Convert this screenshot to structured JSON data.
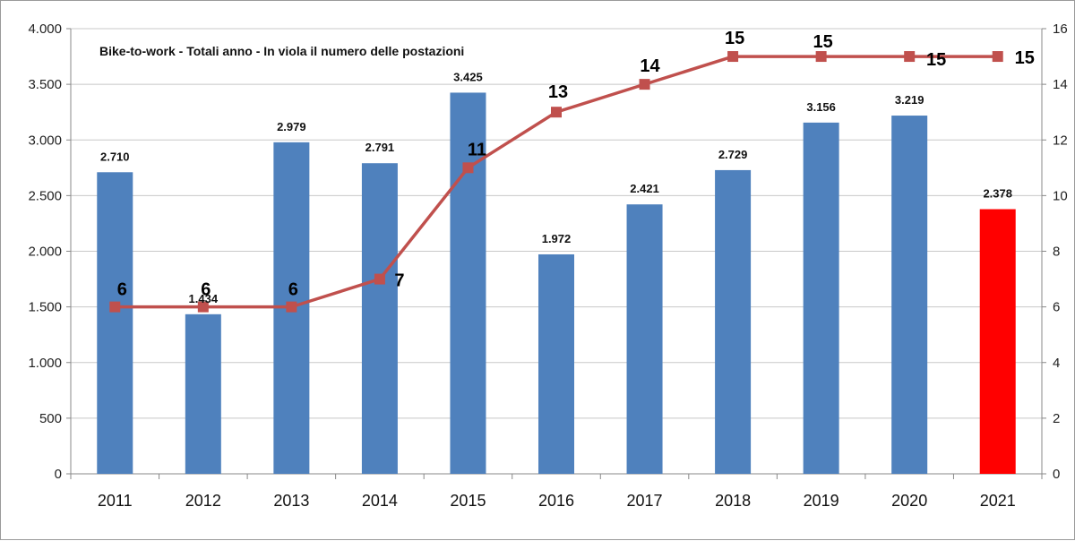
{
  "chart_data": {
    "type": "bar",
    "title": "Bike-to-work - Totali anno  - In viola il numero delle postazioni",
    "categories": [
      "2011",
      "2012",
      "2013",
      "2014",
      "2015",
      "2016",
      "2017",
      "2018",
      "2019",
      "2020",
      "2021"
    ],
    "series": [
      {
        "type": "bar",
        "axis": "left",
        "values": [
          2710,
          1434,
          2979,
          2791,
          3425,
          1972,
          2421,
          2729,
          3156,
          3219,
          2378
        ],
        "labels": [
          "2.710",
          "1.434",
          "2.979",
          "2.791",
          "3.425",
          "1.972",
          "2.421",
          "2.729",
          "3.156",
          "3.219",
          "2.378"
        ],
        "color": "#4f81bd",
        "highlight_index": 10,
        "highlight_color": "#ff0000"
      },
      {
        "type": "line",
        "axis": "right",
        "values": [
          6,
          6,
          6,
          7,
          11,
          13,
          14,
          15,
          15,
          15,
          15
        ],
        "labels": [
          "6",
          "6",
          "6",
          "7",
          "11",
          "13",
          "14",
          "15",
          "15",
          "15",
          "15"
        ],
        "color": "#c0504d"
      }
    ],
    "y_left": {
      "ylim": [
        0,
        4000
      ],
      "ticks": [
        0,
        500,
        1000,
        1500,
        2000,
        2500,
        3000,
        3500,
        4000
      ],
      "tick_labels": [
        "0",
        "500",
        "1.000",
        "1.500",
        "2.000",
        "2.500",
        "3.000",
        "3.500",
        "4.000"
      ]
    },
    "y_right": {
      "ylim": [
        0,
        16
      ],
      "ticks": [
        0,
        2,
        4,
        6,
        8,
        10,
        12,
        14,
        16
      ],
      "tick_labels": [
        "0",
        "2",
        "4",
        "6",
        "8",
        "10",
        "12",
        "14",
        "16"
      ]
    },
    "grid": true,
    "legend": "none"
  }
}
